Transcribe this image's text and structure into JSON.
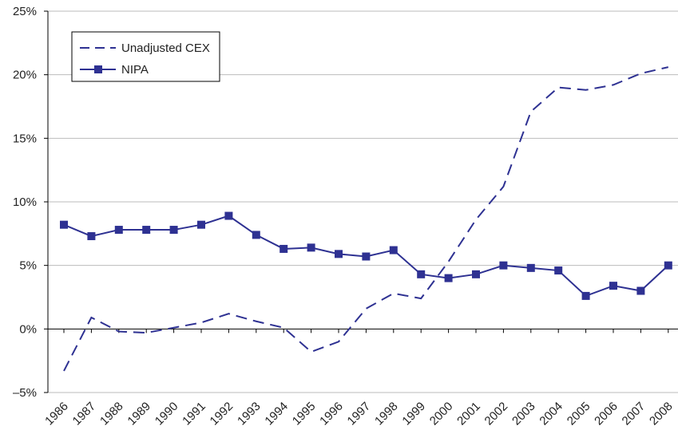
{
  "chart_data": {
    "type": "line",
    "categories": [
      "1986",
      "1987",
      "1988",
      "1989",
      "1990",
      "1991",
      "1992",
      "1993",
      "1994",
      "1995",
      "1996",
      "1997",
      "1998",
      "1999",
      "2000",
      "2001",
      "2002",
      "2003",
      "2004",
      "2005",
      "2006",
      "2007",
      "2008"
    ],
    "series": [
      {
        "name": "Unadjusted CEX",
        "color": "#2e3192",
        "dash": true,
        "values": [
          -3.3,
          0.9,
          -0.2,
          -0.3,
          0.1,
          0.5,
          1.2,
          0.6,
          0.1,
          -1.8,
          -1.0,
          1.6,
          2.8,
          2.4,
          5.3,
          8.6,
          11.2,
          17.1,
          19.0,
          18.8,
          19.2,
          20.1,
          20.6
        ]
      },
      {
        "name": "NIPA",
        "color": "#2e3192",
        "marker": "square",
        "values": [
          8.2,
          7.3,
          7.8,
          7.8,
          7.8,
          8.2,
          8.9,
          7.4,
          6.3,
          6.4,
          5.9,
          5.7,
          6.2,
          4.3,
          4.0,
          4.3,
          5.0,
          4.8,
          4.6,
          2.6,
          3.4,
          3.0,
          5.0
        ]
      }
    ],
    "ylim": [
      -5,
      25
    ],
    "yticks": [
      {
        "value": -5,
        "label": "–5%"
      },
      {
        "value": 0,
        "label": "0%"
      },
      {
        "value": 5,
        "label": "5%"
      },
      {
        "value": 10,
        "label": "10%"
      },
      {
        "value": 15,
        "label": "15%"
      },
      {
        "value": 20,
        "label": "20%"
      },
      {
        "value": 25,
        "label": "25%"
      }
    ],
    "grid": true,
    "legend": "upper left"
  }
}
